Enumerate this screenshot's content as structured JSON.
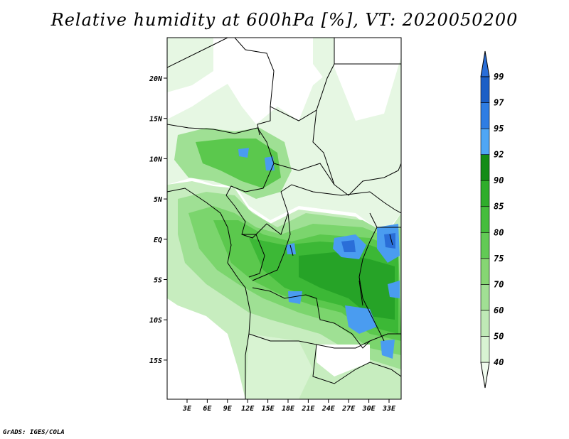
{
  "title": "Relative humidity at 600hPa [%], VT: 2020050200",
  "credit": "GrADS: IGES/COLA",
  "map": {
    "lon_labels": [
      "3E",
      "6E",
      "9E",
      "12E",
      "15E",
      "18E",
      "21E",
      "24E",
      "27E",
      "30E",
      "33E"
    ],
    "lat_labels": [
      "20N",
      "15N",
      "10N",
      "5N",
      "EQ",
      "5S",
      "10S",
      "15S"
    ],
    "colors": {
      "bg": "#ffffff",
      "rh_50": "#e6f7e3",
      "rh_60": "#c7edbf",
      "rh_70": "#9fe094",
      "rh_75": "#7bd56d",
      "rh_80": "#5bc84d",
      "rh_85": "#3cb836",
      "rh_92": "#1f9c23",
      "rh_95": "#4a9cf0",
      "rh_97": "#2a6ed8",
      "borders": "#000000"
    }
  },
  "colorbar": {
    "levels": [
      "40",
      "50",
      "60",
      "70",
      "75",
      "80",
      "85",
      "90",
      "92",
      "95",
      "97",
      "99"
    ],
    "colors": [
      "#f0fbee",
      "#d8f3d2",
      "#bfe9b6",
      "#a1df94",
      "#86d673",
      "#62ca55",
      "#45bd3c",
      "#2fad2b",
      "#148c17",
      "#4fa6f5",
      "#2f7de3",
      "#1c5fc6",
      "#2a6ed8"
    ]
  }
}
